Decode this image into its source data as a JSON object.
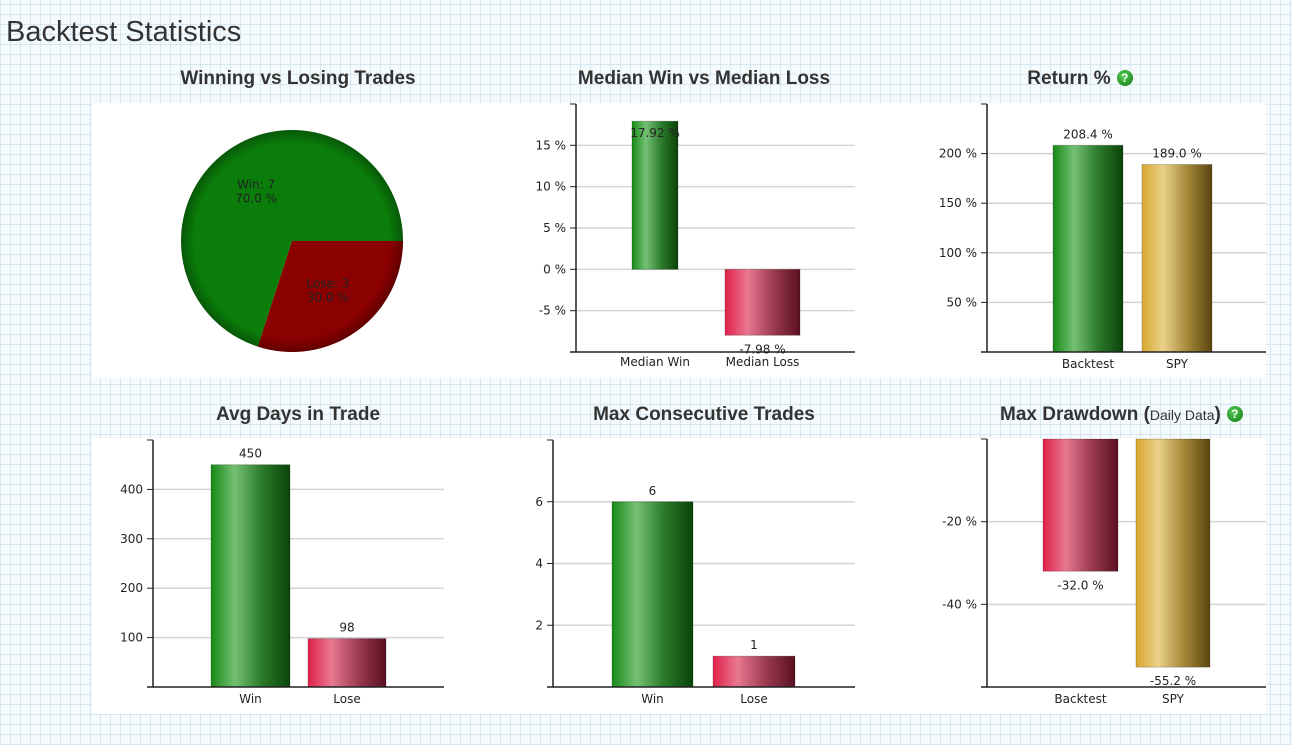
{
  "page": {
    "title": "Backtest Statistics",
    "help_icon": "question-circle-icon",
    "help_glyph": "?"
  },
  "chart_data": [
    {
      "id": "pie",
      "type": "pie",
      "title": "Winning vs Losing Trades",
      "slices": [
        {
          "name": "Win",
          "count": 7,
          "label": "Win: 7",
          "pct_label": "70.0 %",
          "value": 70.0,
          "color": "#0a7d0a"
        },
        {
          "name": "Lose",
          "count": 3,
          "label": "Lose: 3",
          "pct_label": "30.0 %",
          "value": 30.0,
          "color": "#8b0000"
        }
      ]
    },
    {
      "id": "median",
      "type": "bar",
      "title": "Median Win vs Median Loss",
      "categories": [
        "Median Win",
        "Median Loss"
      ],
      "values": [
        17.92,
        -7.98
      ],
      "value_labels": [
        "17.92 %",
        "-7.98 %"
      ],
      "colors": [
        "green",
        "red"
      ],
      "yticks": [
        15,
        10,
        5,
        0,
        -5
      ],
      "ytick_labels": [
        "15 %",
        "10 %",
        "5 %",
        "0 %",
        "-5 %"
      ],
      "ylim": [
        -10,
        20
      ],
      "grid": true
    },
    {
      "id": "return",
      "type": "bar",
      "title": "Return %",
      "has_help": true,
      "categories": [
        "Backtest",
        "SPY"
      ],
      "values": [
        208.4,
        189.0
      ],
      "value_labels": [
        "208.4 %",
        "189.0 %"
      ],
      "colors": [
        "green",
        "gold"
      ],
      "yticks": [
        200,
        150,
        100,
        50
      ],
      "ytick_labels": [
        "200 %",
        "150 %",
        "100 %",
        "50 %"
      ],
      "ylim": [
        0,
        250
      ],
      "grid": true
    },
    {
      "id": "days",
      "type": "bar",
      "title": "Avg Days in Trade",
      "categories": [
        "Win",
        "Lose"
      ],
      "values": [
        450,
        98
      ],
      "value_labels": [
        "450",
        "98"
      ],
      "colors": [
        "green",
        "red"
      ],
      "yticks": [
        400,
        300,
        200,
        100
      ],
      "ytick_labels": [
        "400",
        "300",
        "200",
        "100"
      ],
      "ylim": [
        0,
        500
      ],
      "grid": true
    },
    {
      "id": "consec",
      "type": "bar",
      "title": "Max Consecutive Trades",
      "categories": [
        "Win",
        "Lose"
      ],
      "values": [
        6,
        1
      ],
      "value_labels": [
        "6",
        "1"
      ],
      "colors": [
        "green",
        "red"
      ],
      "yticks": [
        6,
        4,
        2
      ],
      "ytick_labels": [
        "6",
        "4",
        "2"
      ],
      "ylim": [
        0,
        8
      ],
      "grid": true
    },
    {
      "id": "drawdown",
      "type": "bar",
      "title": "Max Drawdown (",
      "title_small": "Daily Data",
      "title_end": ")",
      "has_help": true,
      "categories": [
        "Backtest",
        "SPY"
      ],
      "values": [
        -32.0,
        -55.2
      ],
      "value_labels": [
        "-32.0 %",
        "-55.2 %"
      ],
      "colors": [
        "red",
        "gold"
      ],
      "yticks": [
        -20,
        -40
      ],
      "ytick_labels": [
        "-20 %",
        "-40 %"
      ],
      "ylim": [
        -60,
        0
      ],
      "grid": true
    }
  ]
}
